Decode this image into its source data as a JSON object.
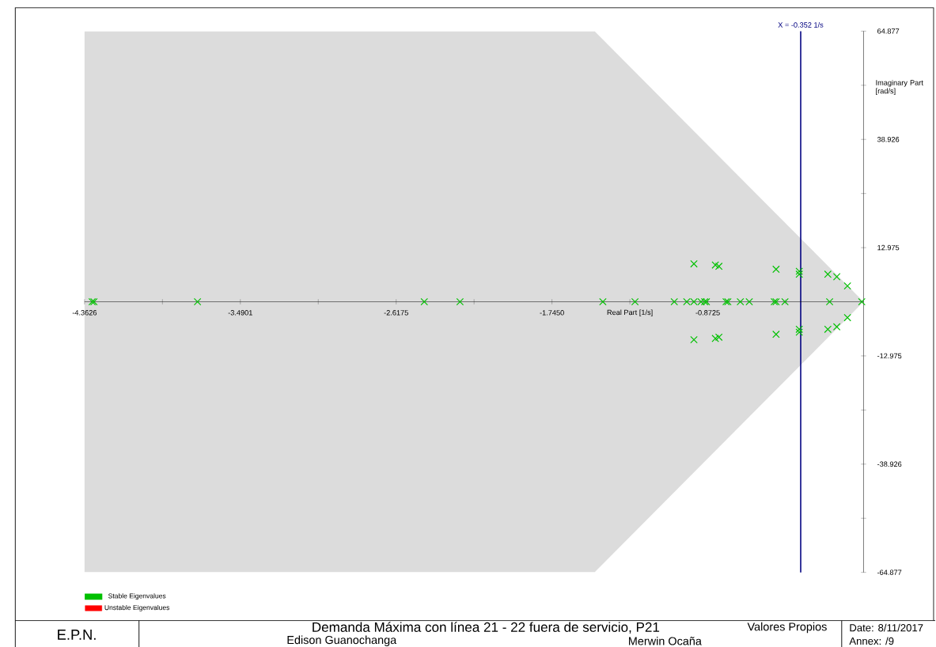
{
  "chart_data": {
    "type": "scatter",
    "title": "Demanda Máxima con línea 21 - 22 fuera de servicio, P21",
    "xlabel": "Real Part [1/s]",
    "ylabel": "Imaginary Part [rad/s]",
    "annotations": [
      "E.P.N.",
      "Valores Propios",
      "Date: 8/11/2017",
      "Edison Guanochanga",
      "Merwin Ocaña",
      "Annex: /9"
    ],
    "xlim": [
      -4.3626,
      0
    ],
    "ylim": [
      -64.877,
      64.877
    ],
    "xticks": [
      -4.3626,
      {
        "value": -3.92634,
        "label": null
      },
      -3.4901,
      {
        "value": -3.0538,
        "label": null
      },
      -2.6175,
      {
        "value": -2.18125,
        "label": null
      },
      {
        "value": -1.745,
        "label": "-1.7450"
      },
      {
        "value": -1.30875,
        "label": null
      },
      -0.8725,
      {
        "value": -0.43625,
        "label": null
      }
    ],
    "yticks": [
      -64.877,
      {
        "value": -51.9016,
        "label": null
      },
      -38.926,
      {
        "value": -25.9508,
        "label": null
      },
      -12.975,
      12.975,
      {
        "value": 25.9508,
        "label": null
      },
      38.926,
      {
        "value": 51.9016,
        "label": null
      },
      64.877
    ],
    "marker": "cross",
    "legend": "bottom left",
    "ref_lines": [
      {
        "axis": "x",
        "value": -0.352,
        "label": "X = -0.352 1/s",
        "color": "#000080"
      }
    ],
    "series": [
      {
        "type": "area",
        "color": "#dcdcdc",
        "marker": "none",
        "x": [
          -4.3626,
          -1.505,
          0
        ],
        "values": [
          64.8,
          64.8,
          0
        ]
      },
      {
        "type": "area",
        "color": "#dcdcdc",
        "marker": "none",
        "x": [
          -4.3626,
          -1.505,
          0
        ],
        "values": [
          -64.8,
          -64.8,
          0
        ]
      },
      {
        "name": "Stable Eigenvalues",
        "color": "#00c000",
        "x": [
          -4.32,
          -4.31,
          -3.73,
          -2.46,
          -2.26,
          -1.46,
          -1.28,
          -1.06,
          -0.99,
          -0.95,
          -0.91,
          -0.89,
          -0.88,
          -0.77,
          -0.76,
          -0.69,
          -0.64,
          -0.5,
          -0.49,
          -0.44,
          -0.19,
          -0.01,
          -0.95,
          -0.95,
          -0.83,
          -0.83,
          -0.81,
          -0.81,
          -0.49,
          -0.49,
          -0.36,
          -0.36,
          -0.36,
          -0.36,
          -0.2,
          -0.2,
          -0.15,
          -0.15,
          -0.09,
          -0.09
        ],
        "values": [
          0,
          0,
          0,
          0,
          0,
          0,
          0,
          0,
          0,
          0,
          0,
          0,
          0,
          0,
          0,
          0,
          0,
          0,
          0,
          0,
          0,
          0,
          9.1,
          -9.1,
          8.8,
          -8.8,
          8.5,
          -8.5,
          7.8,
          -7.8,
          7.3,
          -7.3,
          6.6,
          -6.6,
          6.6,
          -6.6,
          6.0,
          -6.0,
          3.8,
          -3.8
        ]
      },
      {
        "name": "Unstable Eigenvalues",
        "color": "#ff0000"
      }
    ]
  }
}
